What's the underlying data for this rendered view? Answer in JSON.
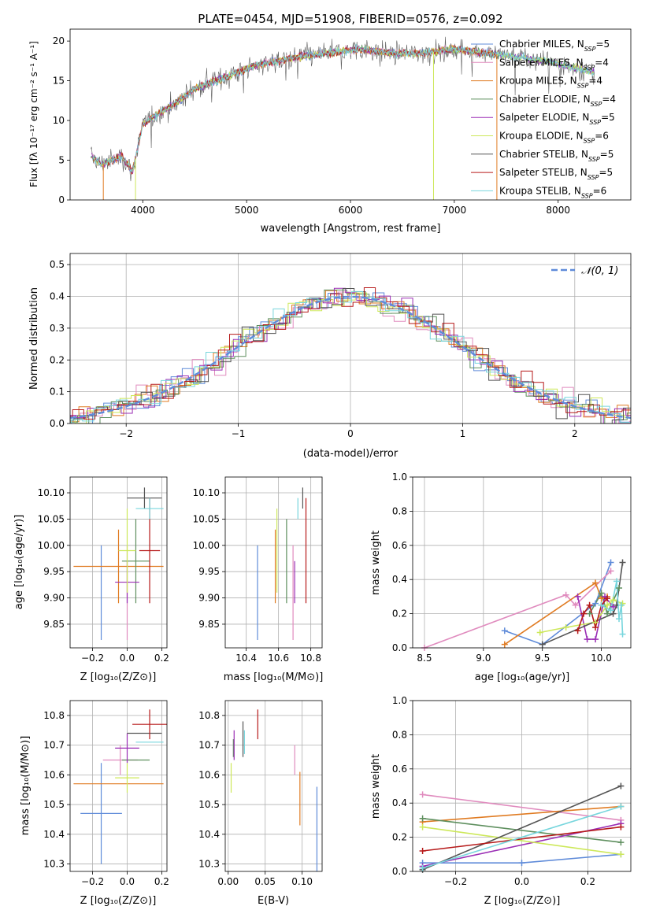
{
  "colors": {
    "Chabrier MILES": "#5f8bd9",
    "Salpeter MILES": "#e08bbe",
    "Kroupa MILES": "#e07b22",
    "Chabrier ELODIE": "#5e8f5e",
    "Salpeter ELODIE": "#9b2fb5",
    "Kroupa ELODIE": "#cde85a",
    "Chabrier STELIB": "#555555",
    "Salpeter STELIB": "#b61919",
    "Kroupa STELIB": "#78d6dd"
  },
  "chart_data": [
    {
      "id": "spectrum",
      "type": "line",
      "title": "PLATE=0454, MJD=51908, FIBERID=0576, z=0.092",
      "xlabel": "wavelength [Angstrom, rest frame]",
      "ylabel": "Flux [fλ 10⁻¹⁷ erg cm⁻² s⁻¹ A⁻¹]",
      "xlim": [
        3300,
        8700
      ],
      "ylim": [
        0,
        21.5
      ],
      "xticks": [
        4000,
        5000,
        6000,
        7000,
        8000
      ],
      "yticks": [
        0,
        5,
        10,
        15,
        20
      ],
      "continuum_x": [
        3500,
        3600,
        3700,
        3800,
        3900,
        4000,
        4100,
        4300,
        4500,
        4700,
        4900,
        5100,
        5300,
        5500,
        5800,
        6100,
        6400,
        6700,
        7000,
        7300,
        7600,
        7900,
        8200,
        8350
      ],
      "continuum_y": [
        5.5,
        4.5,
        5.0,
        5.5,
        3.5,
        9.5,
        10.5,
        12.0,
        14.0,
        15.0,
        16.0,
        17.0,
        17.5,
        18.0,
        18.5,
        19.0,
        18.5,
        18.5,
        19.0,
        18.5,
        18.0,
        17.5,
        16.5,
        16.0
      ],
      "legend": [
        {
          "label": "Chabrier MILES, N",
          "sub": "SSP",
          "tail": "=5"
        },
        {
          "label": "Salpeter MILES, N",
          "sub": "SSP",
          "tail": "=4"
        },
        {
          "label": "Kroupa MILES, N",
          "sub": "SSP",
          "tail": "=4"
        },
        {
          "label": "Chabrier ELODIE, N",
          "sub": "SSP",
          "tail": "=4"
        },
        {
          "label": "Salpeter ELODIE, N",
          "sub": "SSP",
          "tail": "=5"
        },
        {
          "label": "Kroupa ELODIE, N",
          "sub": "SSP",
          "tail": "=6"
        },
        {
          "label": "Chabrier STELIB, N",
          "sub": "SSP",
          "tail": "=5"
        },
        {
          "label": "Salpeter STELIB, N",
          "sub": "SSP",
          "tail": "=5"
        },
        {
          "label": "Kroupa STELIB, N",
          "sub": "SSP",
          "tail": "=6"
        }
      ],
      "legend_placement": "right",
      "grid": false
    },
    {
      "id": "residuals",
      "type": "histogram",
      "xlabel": "(data-model)/error",
      "ylabel": "Normed distribution",
      "xlim": [
        -2.5,
        2.5
      ],
      "ylim": [
        0,
        0.535
      ],
      "xticks": [
        -2,
        -1,
        0,
        1,
        2
      ],
      "yticks": [
        0.0,
        0.1,
        0.2,
        0.3,
        0.4,
        0.5
      ],
      "legend": "𝒩(0, 1)",
      "legend_placement": "top-right",
      "grid": true
    },
    {
      "id": "age_vs_Z",
      "type": "errorbar",
      "xlabel": "Z [log₁₀(Z/Z⊙)]",
      "ylabel": "age  [log₁₀(age/yr)]",
      "xlim": [
        -0.33,
        0.23
      ],
      "ylim": [
        9.805,
        10.13
      ],
      "xticks": [
        -0.2,
        0.0,
        0.2
      ],
      "yticks": [
        9.85,
        9.9,
        9.95,
        10.0,
        10.05,
        10.1
      ],
      "points": [
        {
          "s": "Chabrier MILES",
          "x": -0.15,
          "y": 9.91,
          "ex": 0.0,
          "ey": 0.09
        },
        {
          "s": "Salpeter MILES",
          "x": 0.0,
          "y": 9.91,
          "ex": 0.0,
          "ey": 0.09
        },
        {
          "s": "Kroupa MILES",
          "x": -0.05,
          "y": 9.96,
          "ex": 0.26,
          "ey": 0.07
        },
        {
          "s": "Chabrier ELODIE",
          "x": 0.05,
          "y": 9.97,
          "ex": 0.08,
          "ey": 0.08
        },
        {
          "s": "Salpeter ELODIE",
          "x": 0.0,
          "y": 9.93,
          "ex": 0.07,
          "ey": 0.04
        },
        {
          "s": "Kroupa ELODIE",
          "x": 0.0,
          "y": 9.99,
          "ex": 0.05,
          "ey": 0.08
        },
        {
          "s": "Chabrier STELIB",
          "x": 0.1,
          "y": 10.09,
          "ex": 0.1,
          "ey": 0.02
        },
        {
          "s": "Salpeter STELIB",
          "x": 0.13,
          "y": 9.99,
          "ex": 0.06,
          "ey": 0.1
        },
        {
          "s": "Kroupa STELIB",
          "x": 0.13,
          "y": 10.07,
          "ex": 0.08,
          "ey": 0.02
        }
      ],
      "grid": true
    },
    {
      "id": "age_vs_mass",
      "type": "errorbar",
      "xlabel": "mass [log₁₀(M/M⊙)]",
      "ylabel": "",
      "xlim": [
        10.27,
        10.87
      ],
      "ylim": [
        9.805,
        10.13
      ],
      "xticks": [
        10.4,
        10.6,
        10.8
      ],
      "yticks": [
        9.85,
        9.9,
        9.95,
        10.0,
        10.05,
        10.1
      ],
      "points": [
        {
          "s": "Chabrier MILES",
          "x": 10.47,
          "y": 9.91,
          "ex": 0.0,
          "ey": 0.09
        },
        {
          "s": "Salpeter MILES",
          "x": 10.69,
          "y": 9.91,
          "ex": 0.0,
          "ey": 0.09
        },
        {
          "s": "Kroupa MILES",
          "x": 10.58,
          "y": 9.96,
          "ex": 0.0,
          "ey": 0.07
        },
        {
          "s": "Chabrier ELODIE",
          "x": 10.65,
          "y": 9.97,
          "ex": 0.0,
          "ey": 0.08
        },
        {
          "s": "Salpeter ELODIE",
          "x": 10.7,
          "y": 9.93,
          "ex": 0.0,
          "ey": 0.04
        },
        {
          "s": "Kroupa ELODIE",
          "x": 10.59,
          "y": 9.99,
          "ex": 0.0,
          "ey": 0.08
        },
        {
          "s": "Chabrier STELIB",
          "x": 10.75,
          "y": 10.09,
          "ex": 0.0,
          "ey": 0.02
        },
        {
          "s": "Salpeter STELIB",
          "x": 10.77,
          "y": 9.99,
          "ex": 0.0,
          "ey": 0.1
        },
        {
          "s": "Kroupa STELIB",
          "x": 10.72,
          "y": 10.07,
          "ex": 0.0,
          "ey": 0.02
        }
      ],
      "grid": true
    },
    {
      "id": "weight_vs_age",
      "type": "line",
      "xlabel": "age  [log₁₀(age/yr)]",
      "ylabel": "mass weight",
      "xlim": [
        8.4,
        10.25
      ],
      "ylim": [
        0,
        1.0
      ],
      "xticks": [
        8.5,
        9.0,
        9.5,
        10.0
      ],
      "yticks": [
        0.0,
        0.2,
        0.4,
        0.6,
        0.8,
        1.0
      ],
      "series": [
        {
          "s": "Chabrier MILES",
          "x": [
            9.18,
            9.5,
            9.95,
            10.08
          ],
          "y": [
            0.1,
            0.02,
            0.26,
            0.5
          ]
        },
        {
          "s": "Salpeter MILES",
          "x": [
            8.5,
            9.7,
            9.78,
            10.08
          ],
          "y": [
            0.0,
            0.31,
            0.25,
            0.45
          ]
        },
        {
          "s": "Kroupa MILES",
          "x": [
            9.18,
            9.95,
            10.0,
            10.05
          ],
          "y": [
            0.02,
            0.38,
            0.29,
            0.3
          ]
        },
        {
          "s": "Chabrier ELODIE",
          "x": [
            9.9,
            10.0,
            10.05,
            10.15
          ],
          "y": [
            0.2,
            0.32,
            0.2,
            0.35
          ]
        },
        {
          "s": "Salpeter ELODIE",
          "x": [
            9.8,
            9.88,
            9.95,
            10.03,
            10.1
          ],
          "y": [
            0.3,
            0.05,
            0.05,
            0.3,
            0.24
          ]
        },
        {
          "s": "Kroupa ELODIE",
          "x": [
            9.48,
            9.7,
            9.95,
            10.05,
            10.1,
            10.18
          ],
          "y": [
            0.09,
            0.12,
            0.15,
            0.25,
            0.28,
            0.26
          ]
        },
        {
          "s": "Chabrier STELIB",
          "x": [
            9.5,
            10.1,
            10.13,
            10.18
          ],
          "y": [
            0.02,
            0.2,
            0.25,
            0.5
          ]
        },
        {
          "s": "Salpeter STELIB",
          "x": [
            9.8,
            9.85,
            9.9,
            9.95,
            10.0,
            10.05
          ],
          "y": [
            0.1,
            0.2,
            0.25,
            0.12,
            0.25,
            0.29
          ]
        },
        {
          "s": "Kroupa STELIB",
          "x": [
            10.0,
            10.08,
            10.13,
            10.15,
            10.17,
            10.18
          ],
          "y": [
            0.25,
            0.22,
            0.39,
            0.17,
            0.25,
            0.08
          ]
        }
      ],
      "grid": true
    },
    {
      "id": "mass_vs_Z",
      "type": "errorbar",
      "xlabel": "Z [log₁₀(Z/Z⊙)]",
      "ylabel": "mass [log₁₀(M/M⊙)]",
      "xlim": [
        -0.33,
        0.23
      ],
      "ylim": [
        10.275,
        10.85
      ],
      "xticks": [
        -0.2,
        0.0,
        0.2
      ],
      "yticks": [
        10.3,
        10.4,
        10.5,
        10.6,
        10.7,
        10.8
      ],
      "points": [
        {
          "s": "Chabrier MILES",
          "x": -0.15,
          "y": 10.47,
          "ex": 0.12,
          "ey": 0.17
        },
        {
          "s": "Salpeter MILES",
          "x": -0.04,
          "y": 10.65,
          "ex": 0.1,
          "ey": 0.05
        },
        {
          "s": "Kroupa MILES",
          "x": -0.05,
          "y": 10.57,
          "ex": 0.26,
          "ey": 0.0
        },
        {
          "s": "Chabrier ELODIE",
          "x": 0.05,
          "y": 10.65,
          "ex": 0.08,
          "ey": 0.0
        },
        {
          "s": "Salpeter ELODIE",
          "x": 0.0,
          "y": 10.69,
          "ex": 0.07,
          "ey": 0.05
        },
        {
          "s": "Kroupa ELODIE",
          "x": 0.0,
          "y": 10.59,
          "ex": 0.07,
          "ey": 0.05
        },
        {
          "s": "Chabrier STELIB",
          "x": 0.1,
          "y": 10.74,
          "ex": 0.1,
          "ey": 0.0
        },
        {
          "s": "Salpeter STELIB",
          "x": 0.13,
          "y": 10.77,
          "ex": 0.1,
          "ey": 0.05
        },
        {
          "s": "Kroupa STELIB",
          "x": 0.13,
          "y": 10.71,
          "ex": 0.08,
          "ey": 0.0
        }
      ],
      "grid": true
    },
    {
      "id": "mass_vs_ebv",
      "type": "errorbar",
      "xlabel": "E(B-V)",
      "ylabel": "",
      "xlim": [
        -0.004,
        0.127
      ],
      "ylim": [
        10.275,
        10.85
      ],
      "xticks": [
        0.0,
        0.05,
        0.1
      ],
      "yticks": [
        10.3,
        10.4,
        10.5,
        10.6,
        10.7,
        10.8
      ],
      "points": [
        {
          "s": "Chabrier MILES",
          "x": 0.12,
          "y": 10.39,
          "ex": 0.0,
          "ey": 0.17
        },
        {
          "s": "Salpeter MILES",
          "x": 0.09,
          "y": 10.65,
          "ex": 0.0,
          "ey": 0.05
        },
        {
          "s": "Kroupa MILES",
          "x": 0.097,
          "y": 10.52,
          "ex": 0.0,
          "ey": 0.09
        },
        {
          "s": "Chabrier ELODIE",
          "x": 0.007,
          "y": 10.69,
          "ex": 0.0,
          "ey": 0.03
        },
        {
          "s": "Salpeter ELODIE",
          "x": 0.008,
          "y": 10.7,
          "ex": 0.0,
          "ey": 0.05
        },
        {
          "s": "Kroupa ELODIE",
          "x": 0.004,
          "y": 10.59,
          "ex": 0.0,
          "ey": 0.05
        },
        {
          "s": "Chabrier STELIB",
          "x": 0.02,
          "y": 10.72,
          "ex": 0.0,
          "ey": 0.06
        },
        {
          "s": "Salpeter STELIB",
          "x": 0.04,
          "y": 10.77,
          "ex": 0.0,
          "ey": 0.05
        },
        {
          "s": "Kroupa STELIB",
          "x": 0.022,
          "y": 10.71,
          "ex": 0.0,
          "ey": 0.04
        }
      ],
      "grid": true
    },
    {
      "id": "weight_vs_Z",
      "type": "line",
      "xlabel": "Z [log₁₀(Z/Z⊙)]",
      "ylabel": "mass weight",
      "xlim": [
        -0.33,
        0.33
      ],
      "ylim": [
        0,
        1.0
      ],
      "xticks": [
        -0.2,
        0.0,
        0.2
      ],
      "yticks": [
        0.0,
        0.2,
        0.4,
        0.6,
        0.8,
        1.0
      ],
      "series": [
        {
          "s": "Chabrier MILES",
          "x": [
            -0.3,
            0.0,
            0.3
          ],
          "y": [
            0.05,
            0.05,
            0.1
          ]
        },
        {
          "s": "Salpeter MILES",
          "x": [
            -0.3,
            0.3
          ],
          "y": [
            0.45,
            0.3
          ]
        },
        {
          "s": "Kroupa MILES",
          "x": [
            -0.3,
            0.3
          ],
          "y": [
            0.29,
            0.38
          ]
        },
        {
          "s": "Chabrier ELODIE",
          "x": [
            -0.3,
            0.3
          ],
          "y": [
            0.31,
            0.17
          ]
        },
        {
          "s": "Salpeter ELODIE",
          "x": [
            -0.3,
            0.3
          ],
          "y": [
            0.03,
            0.28
          ]
        },
        {
          "s": "Kroupa ELODIE",
          "x": [
            -0.3,
            0.3
          ],
          "y": [
            0.26,
            0.1
          ]
        },
        {
          "s": "Chabrier STELIB",
          "x": [
            -0.3,
            0.3
          ],
          "y": [
            0.01,
            0.5
          ]
        },
        {
          "s": "Salpeter STELIB",
          "x": [
            -0.3,
            0.3
          ],
          "y": [
            0.12,
            0.26
          ]
        },
        {
          "s": "Kroupa STELIB",
          "x": [
            -0.3,
            0.3
          ],
          "y": [
            0.02,
            0.38
          ]
        }
      ],
      "grid": true
    }
  ]
}
